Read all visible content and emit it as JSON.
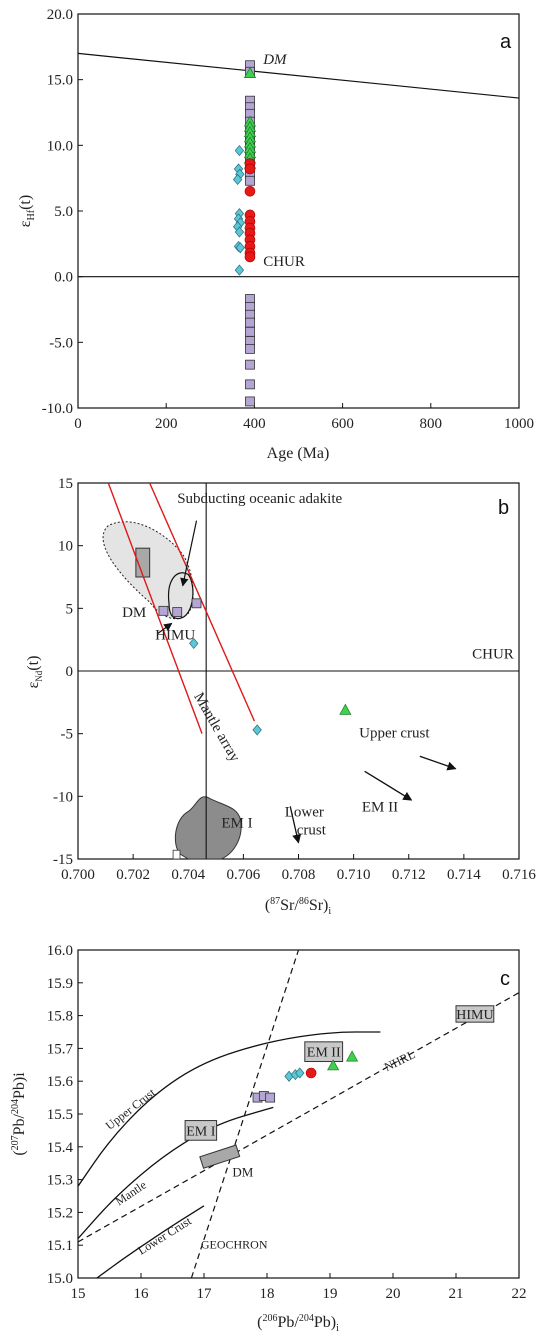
{
  "chart_data": [
    {
      "type": "scatter",
      "panel": "a",
      "title": "",
      "xlabel": "Age (Ma)",
      "ylabel_main": "ε",
      "ylabel_sub": "Hf",
      "ylabel_tail": "(t)",
      "xlim": [
        0,
        1000
      ],
      "ylim": [
        -10,
        20
      ],
      "xticks": [
        "0",
        "200",
        "400",
        "600",
        "800",
        "1000"
      ],
      "yticks": [
        "-10.0",
        "-5.0",
        "0.0",
        "5.0",
        "10.0",
        "15.0",
        "20.0"
      ],
      "xtick_values": [
        0,
        200,
        400,
        600,
        800,
        1000
      ],
      "ytick_values": [
        -10,
        -5,
        0,
        5,
        10,
        15,
        20
      ],
      "lines": [
        {
          "label": "DM",
          "x": [
            0,
            1000
          ],
          "y": [
            17.0,
            13.6
          ],
          "label_at": [
            420,
            16.2
          ]
        },
        {
          "label": "CHUR",
          "x": [
            0,
            1000
          ],
          "y": [
            0,
            0
          ],
          "label_at": [
            420,
            0.8
          ]
        }
      ],
      "series": [
        {
          "marker": "square",
          "color": "#b5a5d4",
          "points": [
            [
              390,
              16.1
            ],
            [
              390,
              15.6
            ],
            [
              390,
              13.4
            ],
            [
              390,
              12.9
            ],
            [
              390,
              12.4
            ],
            [
              390,
              11.8
            ],
            [
              390,
              11.3
            ],
            [
              390,
              10.8
            ],
            [
              390,
              10.3
            ],
            [
              390,
              9.8
            ],
            [
              390,
              9.3
            ],
            [
              390,
              8.8
            ],
            [
              390,
              8.3
            ],
            [
              390,
              7.8
            ],
            [
              390,
              7.3
            ],
            [
              390,
              -1.7
            ],
            [
              390,
              -2.3
            ],
            [
              390,
              -2.9
            ],
            [
              390,
              -3.5
            ],
            [
              390,
              -4.2
            ],
            [
              390,
              -4.9
            ],
            [
              390,
              -5.5
            ],
            [
              390,
              -6.7
            ],
            [
              390,
              -8.2
            ],
            [
              390,
              -9.5
            ]
          ]
        },
        {
          "marker": "triangle",
          "color": "#40d050",
          "points": [
            [
              390,
              15.5
            ],
            [
              390,
              11.8
            ],
            [
              390,
              11.4
            ],
            [
              390,
              11.0
            ],
            [
              390,
              10.6
            ],
            [
              390,
              10.2
            ],
            [
              390,
              9.8
            ],
            [
              390,
              9.4
            ],
            [
              390,
              9.0
            ],
            [
              390,
              8.6
            ]
          ]
        },
        {
          "marker": "diamond",
          "color": "#5bc8d8",
          "points": [
            [
              366,
              9.6
            ],
            [
              364,
              8.2
            ],
            [
              367,
              7.8
            ],
            [
              362,
              7.4
            ],
            [
              366,
              4.8
            ],
            [
              364,
              4.4
            ],
            [
              368,
              4.1
            ],
            [
              362,
              3.8
            ],
            [
              366,
              3.4
            ],
            [
              364,
              2.3
            ],
            [
              368,
              2.2
            ],
            [
              366,
              0.5
            ]
          ]
        },
        {
          "marker": "circle",
          "color": "#e61919",
          "points": [
            [
              390,
              8.6
            ],
            [
              390,
              8.2
            ],
            [
              390,
              6.5
            ],
            [
              390,
              4.7
            ],
            [
              390,
              4.2
            ],
            [
              390,
              3.7
            ],
            [
              390,
              3.3
            ],
            [
              390,
              2.8
            ],
            [
              390,
              2.3
            ],
            [
              390,
              1.8
            ],
            [
              390,
              1.5
            ]
          ]
        }
      ]
    },
    {
      "type": "scatter",
      "panel": "b",
      "title": "",
      "xlabel_pre": "(",
      "xlabel_sup1": "87",
      "xlabel_mid": "Sr/",
      "xlabel_sup2": "86",
      "xlabel_post": "Sr)",
      "xlabel_sub": "i",
      "ylabel_main": "ε",
      "ylabel_sub": "Nd",
      "ylabel_tail": "(t)",
      "xlim": [
        0.7,
        0.716
      ],
      "ylim": [
        -15,
        15
      ],
      "xticks": [
        "0.700",
        "0.702",
        "0.704",
        "0.706",
        "0.708",
        "0.710",
        "0.712",
        "0.714",
        "0.716"
      ],
      "yticks": [
        "-15",
        "-10",
        "-5",
        "0",
        "5",
        "10",
        "15"
      ],
      "xtick_values": [
        0.7,
        0.702,
        0.704,
        0.706,
        0.708,
        0.71,
        0.712,
        0.714,
        0.716
      ],
      "ytick_values": [
        -15,
        -10,
        -5,
        0,
        5,
        10,
        15
      ],
      "reference_lines": [
        {
          "label": "CHUR",
          "x": [
            0.7,
            0.716
          ],
          "y": [
            0,
            0
          ],
          "label_at": [
            0.7143,
            1.0
          ]
        },
        {
          "label": "",
          "x": [
            0.70465,
            0.70465
          ],
          "y": [
            -15,
            15
          ]
        }
      ],
      "mantle_array": {
        "label": "Mantle array",
        "lines": [
          [
            [
              0.7011,
              15
            ],
            [
              0.7045,
              -5
            ]
          ],
          [
            [
              0.7026,
              15
            ],
            [
              0.7064,
              -4
            ]
          ]
        ],
        "label_at": [
          0.7042,
          -2
        ]
      },
      "regions": [
        {
          "label": "DM",
          "label_at": [
            0.7016,
            4.3
          ]
        },
        {
          "label": "HIMU",
          "label_at": [
            0.7028,
            2.5
          ],
          "arrow_to": [
            0.7034,
            3.8
          ]
        },
        {
          "label": "EM I",
          "label_at": [
            0.7052,
            -12.5
          ]
        },
        {
          "label": "Subducting oceanic adakite",
          "label_at": [
            0.7036,
            13.4
          ],
          "arrow_from": [
            0.7043,
            12.0
          ],
          "arrow_to": [
            0.7038,
            6.8
          ]
        }
      ],
      "arrows": [
        {
          "label": "Upper crust",
          "label_at": [
            0.7102,
            -5.3
          ],
          "from": [
            0.7124,
            -6.8
          ],
          "to": [
            0.7137,
            -7.8
          ]
        },
        {
          "label": "EM II",
          "label_at": [
            0.7103,
            -11.2
          ],
          "from": [
            0.7104,
            -8.0
          ],
          "to": [
            0.7121,
            -10.3
          ]
        },
        {
          "label": "Lower crust",
          "label_at": [
            0.7075,
            -11.6
          ],
          "arrow_from": [
            0.7077,
            -10.8
          ],
          "arrow_to": [
            0.708,
            -13.7
          ]
        }
      ],
      "series": [
        {
          "marker": "square",
          "color": "#b5a5d4",
          "points": [
            [
              0.7031,
              4.8
            ],
            [
              0.7036,
              4.7
            ],
            [
              0.7043,
              5.4
            ]
          ]
        },
        {
          "marker": "diamond",
          "color": "#5bc8d8",
          "points": [
            [
              0.7042,
              2.2
            ],
            [
              0.7065,
              -4.7
            ]
          ]
        },
        {
          "marker": "triangle",
          "color": "#40d050",
          "points": [
            [
              0.7097,
              -3.1
            ]
          ]
        }
      ]
    },
    {
      "type": "scatter",
      "panel": "c",
      "title": "",
      "xlabel_pre": "(",
      "xlabel_sup1": "206",
      "xlabel_mid": "Pb/",
      "xlabel_sup2": "204",
      "xlabel_post": "Pb)",
      "xlabel_sub": "i",
      "ylabel_pre": "(",
      "ylabel_sup1": "207",
      "ylabel_mid": "Pb/",
      "ylabel_sup2": "204",
      "ylabel_post": "Pb)i",
      "xlim": [
        15,
        22
      ],
      "ylim": [
        15.0,
        16.0
      ],
      "xticks": [
        "15",
        "16",
        "17",
        "18",
        "19",
        "20",
        "21",
        "22"
      ],
      "yticks": [
        "15.0",
        "15.1",
        "15.2",
        "15.3",
        "15.4",
        "15.5",
        "15.6",
        "15.7",
        "15.8",
        "15.9",
        "16.0"
      ],
      "xtick_values": [
        15,
        16,
        17,
        18,
        19,
        20,
        21,
        22
      ],
      "ytick_values": [
        15.0,
        15.1,
        15.2,
        15.3,
        15.4,
        15.5,
        15.6,
        15.7,
        15.8,
        15.9,
        16.0
      ],
      "curves": [
        {
          "label": "Upper Crust",
          "points": [
            [
              15,
              15.28
            ],
            [
              15.5,
              15.42
            ],
            [
              16.2,
              15.56
            ],
            [
              17,
              15.66
            ],
            [
              18,
              15.72
            ],
            [
              19,
              15.75
            ],
            [
              19.8,
              15.75
            ]
          ]
        },
        {
          "label": "Mantle",
          "points": [
            [
              15,
              15.12
            ],
            [
              15.6,
              15.25
            ],
            [
              16.4,
              15.38
            ],
            [
              17.2,
              15.47
            ],
            [
              18.1,
              15.52
            ]
          ]
        },
        {
          "label": "Lower Crust",
          "points": [
            [
              15.3,
              15.0
            ],
            [
              15.8,
              15.07
            ],
            [
              16.5,
              15.16
            ],
            [
              17,
              15.22
            ]
          ]
        }
      ],
      "reference_lines": [
        {
          "label": "NHRL",
          "x": [
            15,
            22
          ],
          "y": [
            15.11,
            15.87
          ],
          "label_at": [
            19.9,
            15.63
          ]
        },
        {
          "label": "GEOCHRON",
          "x": [
            16.8,
            18.5
          ],
          "y": [
            15.0,
            16.0
          ],
          "label_at": [
            16.95,
            15.09
          ]
        }
      ],
      "regions": [
        {
          "label": "EM I",
          "x": [
            16.7,
            17.2
          ],
          "y": [
            15.42,
            15.48
          ]
        },
        {
          "label": "EM II",
          "x": [
            18.6,
            19.2
          ],
          "y": [
            15.66,
            15.72
          ]
        },
        {
          "label": "HIMU",
          "x": [
            21.0,
            21.6
          ],
          "y": [
            15.78,
            15.83
          ]
        },
        {
          "label": "DM",
          "label_at": [
            17.45,
            15.31
          ]
        }
      ],
      "series": [
        {
          "marker": "square",
          "color": "#b5a5d4",
          "points": [
            [
              17.85,
              15.55
            ],
            [
              17.95,
              15.555
            ],
            [
              18.05,
              15.55
            ]
          ]
        },
        {
          "marker": "diamond",
          "color": "#5bc8d8",
          "points": [
            [
              18.35,
              15.615
            ],
            [
              18.45,
              15.62
            ],
            [
              18.52,
              15.625
            ]
          ]
        },
        {
          "marker": "circle",
          "color": "#e61919",
          "points": [
            [
              18.7,
              15.625
            ]
          ]
        },
        {
          "marker": "triangle",
          "color": "#40d050",
          "points": [
            [
              19.05,
              15.648
            ],
            [
              19.35,
              15.675
            ]
          ]
        }
      ]
    }
  ]
}
